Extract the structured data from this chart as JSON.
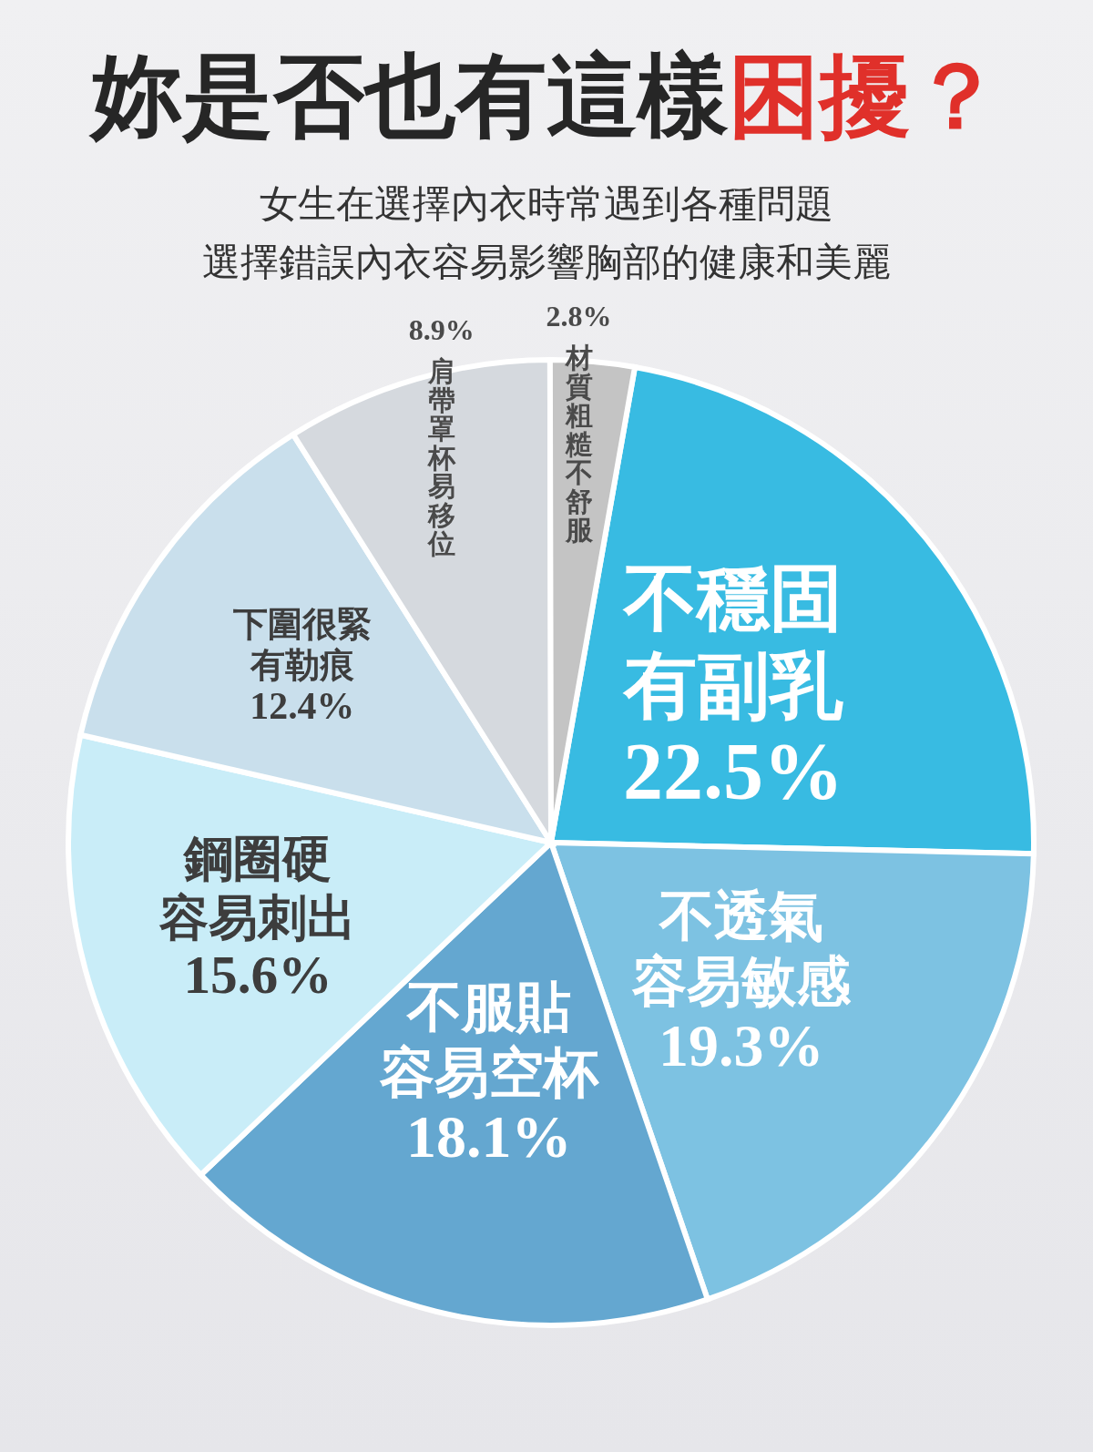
{
  "chart_data": {
    "type": "pie",
    "title": "妳是否也有這樣困擾？",
    "subtitle": "女生在選擇內衣時常遇到各種問題",
    "annotations": [
      "選擇錯誤內衣容易影響胸部的健康和美麗"
    ],
    "categories": [
      "不穩固有副乳",
      "不透氣容易敏感",
      "不服貼容易空杯",
      "鋼圈硬容易刺出",
      "下圍很緊有勒痕",
      "肩帶罩杯易移位",
      "材質粗糙不舒服"
    ],
    "values": [
      22.5,
      19.3,
      18.1,
      15.6,
      12.4,
      8.9,
      2.8
    ],
    "value_labels": [
      "22.5%",
      "19.3%",
      "18.1%",
      "15.6%",
      "12.4%",
      "8.9%",
      "2.8%"
    ],
    "colors": [
      "#38bbe2",
      "#7dc2e2",
      "#64a7d0",
      "#c9edf8",
      "#c9dfec",
      "#d5d9de",
      "#c4c4c4"
    ],
    "legend": false
  }
}
